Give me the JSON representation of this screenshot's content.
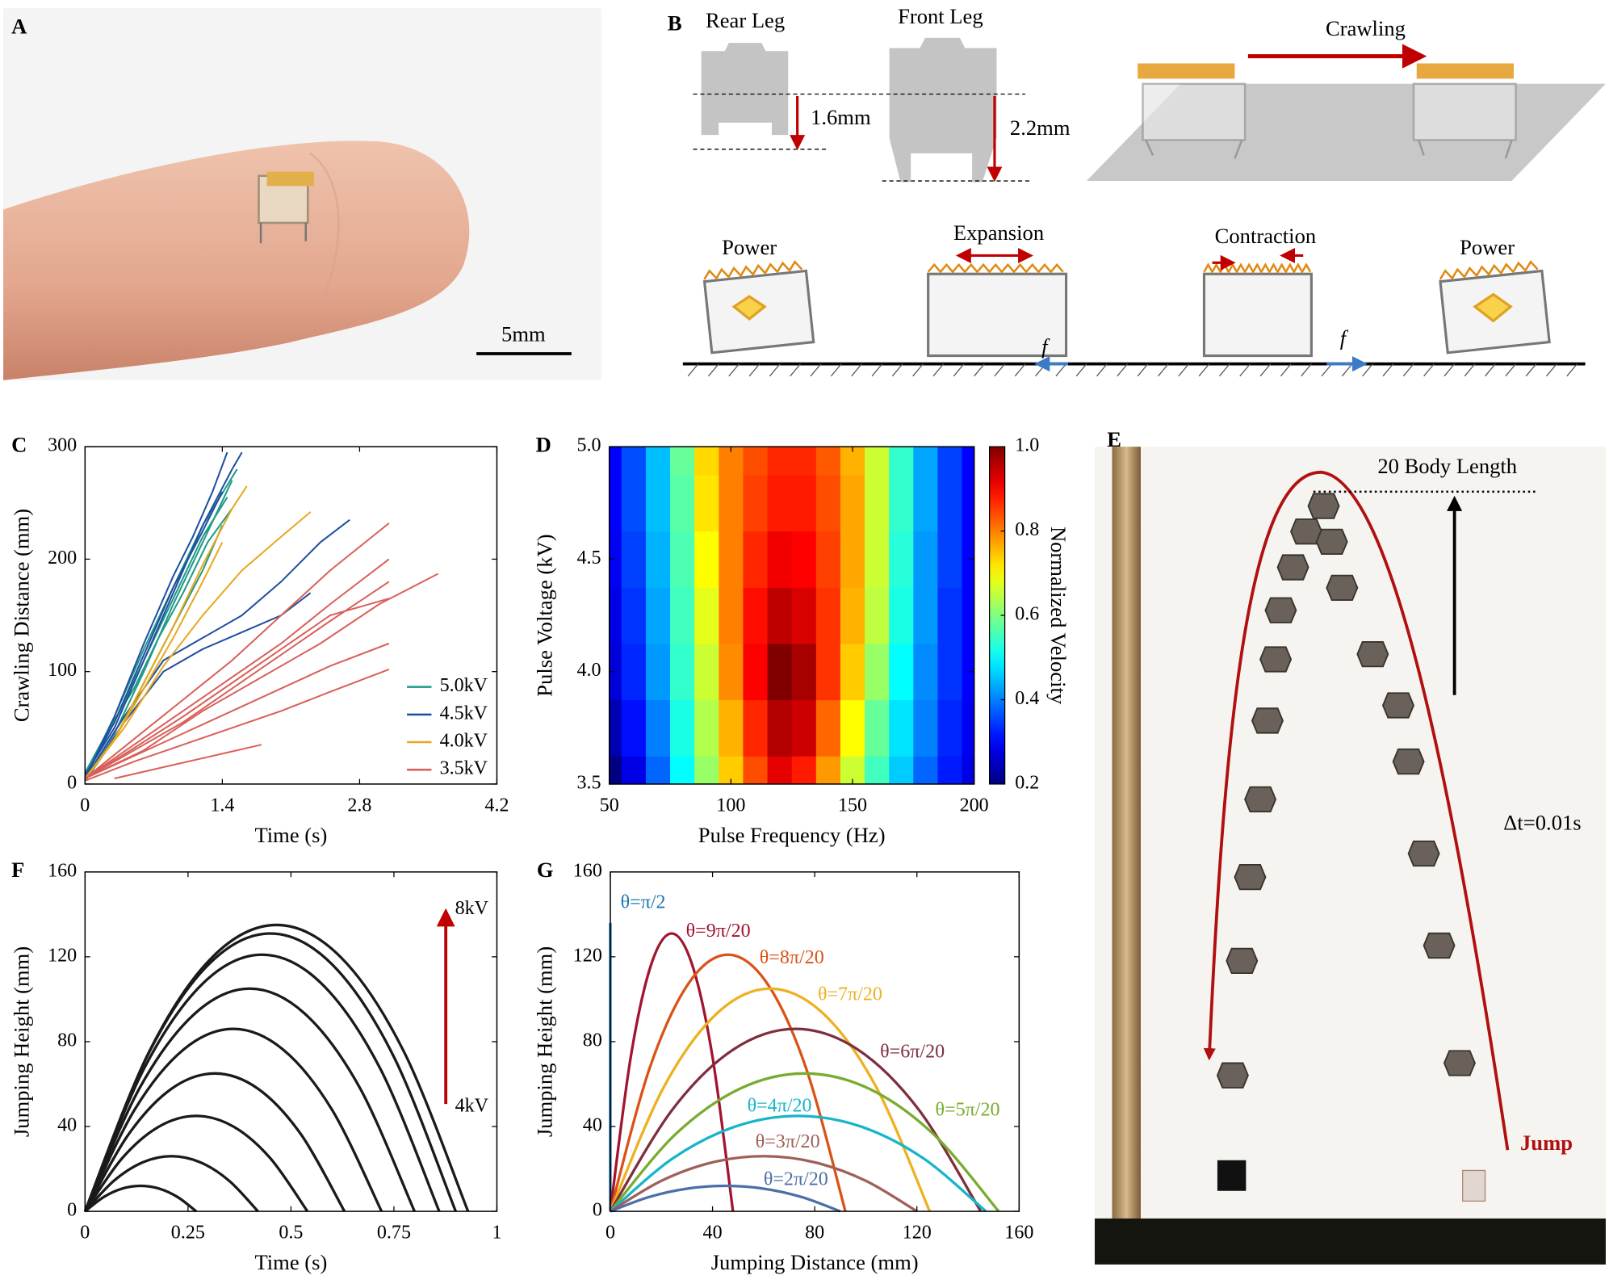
{
  "panels": {
    "A": {
      "label": "A",
      "scale_bar": "5mm"
    },
    "B": {
      "label": "B",
      "rear_leg": "Rear Leg",
      "front_leg": "Front Leg",
      "rear_height": "1.6mm",
      "front_height": "2.2mm",
      "crawling": "Crawling",
      "phases": [
        "Power",
        "Expansion",
        "Contraction",
        "Power"
      ],
      "friction": [
        "f",
        "f"
      ]
    },
    "E": {
      "label": "E",
      "height_note": "20 Body Length",
      "interval": "Δt=0.01s",
      "jump": "Jump"
    }
  },
  "chart_data": [
    {
      "type": "line",
      "panel": "C",
      "xlabel": "Time (s)",
      "ylabel": "Crawling Distance (mm)",
      "xlim": [
        0,
        4.2
      ],
      "xticks": [
        0,
        1.4,
        2.8,
        4.2
      ],
      "ylim": [
        0,
        300
      ],
      "yticks": [
        0,
        100,
        200,
        300
      ],
      "legend": "lower right",
      "series": [
        {
          "name": "5.0kV",
          "color": "#1f9a86",
          "runs": [
            {
              "x": [
                0,
                0.3,
                0.6,
                0.9,
                1.2,
                1.5
              ],
              "values": [
                5,
                45,
                100,
                160,
                215,
                270
              ]
            },
            {
              "x": [
                0,
                0.3,
                0.6,
                0.9,
                1.2,
                1.45
              ],
              "values": [
                8,
                55,
                110,
                165,
                220,
                255
              ]
            },
            {
              "x": [
                0,
                0.3,
                0.6,
                0.9,
                1.2,
                1.4
              ],
              "values": [
                3,
                40,
                90,
                140,
                190,
                230
              ]
            },
            {
              "x": [
                0,
                0.25,
                0.5,
                0.75,
                1.0,
                1.25,
                1.5
              ],
              "values": [
                10,
                50,
                85,
                130,
                170,
                215,
                245
              ]
            },
            {
              "x": [
                0,
                0.3,
                0.6,
                0.9,
                1.2,
                1.55
              ],
              "values": [
                6,
                60,
                120,
                175,
                230,
                280
              ]
            }
          ]
        },
        {
          "name": "4.5kV",
          "color": "#1f4fa0",
          "runs": [
            {
              "x": [
                0,
                0.3,
                0.6,
                0.9,
                1.1,
                1.3,
                1.45
              ],
              "values": [
                5,
                60,
                125,
                185,
                220,
                260,
                295
              ]
            },
            {
              "x": [
                0,
                0.3,
                0.6,
                0.9,
                1.2,
                1.5,
                1.6
              ],
              "values": [
                8,
                50,
                110,
                170,
                230,
                280,
                295
              ]
            },
            {
              "x": [
                0,
                0.4,
                0.8,
                1.2,
                1.6,
                2.0,
                2.4,
                2.7
              ],
              "values": [
                5,
                60,
                110,
                130,
                150,
                180,
                215,
                235
              ]
            },
            {
              "x": [
                0,
                0.4,
                0.8,
                1.2,
                1.6,
                2.0,
                2.3
              ],
              "values": [
                3,
                55,
                100,
                120,
                135,
                150,
                170
              ]
            },
            {
              "x": [
                0,
                0.3,
                0.6,
                0.9,
                1.2,
                1.4
              ],
              "values": [
                6,
                55,
                115,
                175,
                225,
                260
              ]
            }
          ]
        },
        {
          "name": "4.0kV",
          "color": "#e8a820",
          "runs": [
            {
              "x": [
                0,
                0.3,
                0.6,
                0.9,
                1.2,
                1.5,
                1.65
              ],
              "values": [
                5,
                40,
                90,
                140,
                195,
                245,
                265
              ]
            },
            {
              "x": [
                0,
                0.4,
                0.8,
                1.2,
                1.6,
                2.0,
                2.3
              ],
              "values": [
                5,
                50,
                105,
                150,
                190,
                220,
                242
              ]
            },
            {
              "x": [
                0,
                0.3,
                0.6,
                0.9,
                1.2,
                1.4
              ],
              "values": [
                4,
                40,
                85,
                130,
                180,
                215
              ]
            }
          ]
        },
        {
          "name": "3.5kV",
          "color": "#d9605a",
          "runs": [
            {
              "x": [
                0,
                0.5,
                1.0,
                1.5,
                2.0,
                2.5,
                3.1
              ],
              "values": [
                5,
                40,
                75,
                110,
                150,
                190,
                232
              ]
            },
            {
              "x": [
                0,
                0.6,
                1.2,
                1.8,
                2.4,
                3.0,
                3.6
              ],
              "values": [
                5,
                30,
                65,
                95,
                125,
                160,
                187
              ]
            },
            {
              "x": [
                0,
                0.5,
                1.0,
                1.5,
                2.0,
                2.5,
                3.1
              ],
              "values": [
                5,
                35,
                65,
                95,
                125,
                160,
                200
              ]
            },
            {
              "x": [
                0,
                0.5,
                1.0,
                1.5,
                2.0,
                2.5,
                3.1
              ],
              "values": [
                5,
                30,
                55,
                85,
                115,
                145,
                180
              ]
            },
            {
              "x": [
                0,
                0.5,
                1.0,
                1.5,
                2.0,
                2.5,
                3.1
              ],
              "values": [
                5,
                32,
                60,
                90,
                120,
                150,
                165
              ]
            },
            {
              "x": [
                0,
                0.5,
                1.0,
                1.5,
                2.0,
                2.5,
                3.1
              ],
              "values": [
                5,
                25,
                45,
                65,
                85,
                105,
                125
              ]
            },
            {
              "x": [
                0,
                0.5,
                1.0,
                1.5,
                2.0,
                2.5,
                3.1
              ],
              "values": [
                3,
                20,
                35,
                50,
                65,
                82,
                102
              ]
            },
            {
              "x": [
                0.3,
                0.8,
                1.3,
                1.8
              ],
              "values": [
                5,
                15,
                25,
                35
              ]
            }
          ]
        }
      ]
    },
    {
      "type": "heatmap",
      "panel": "D",
      "xlabel": "Pulse Frequency (Hz)",
      "ylabel": "Pulse Voltage (kV)",
      "colorbar_label": "Normalized Velocity",
      "colormap": "jet",
      "xlim": [
        50,
        200
      ],
      "xticks": [
        50,
        100,
        150,
        200
      ],
      "ylim": [
        3.5,
        5
      ],
      "yticks": [
        3.5,
        {
          "value": 4,
          "label": "4.0"
        },
        4.5,
        {
          "value": 5,
          "label": "5.0"
        }
      ],
      "zlim": [
        0.2,
        1
      ],
      "zticks": [
        0.2,
        0.4,
        0.6,
        0.8,
        {
          "value": 1,
          "label": "1.0"
        }
      ],
      "x": [
        50,
        60,
        70,
        80,
        90,
        100,
        110,
        120,
        130,
        140,
        150,
        160,
        170,
        180,
        190,
        200
      ],
      "y": [
        3.5,
        3.75,
        4,
        4.25,
        4.5,
        4.75,
        5
      ],
      "z": [
        [
          0.2,
          0.28,
          0.38,
          0.5,
          0.62,
          0.74,
          0.84,
          0.92,
          0.88,
          0.78,
          0.66,
          0.55,
          0.46,
          0.38,
          0.32,
          0.28
        ],
        [
          0.24,
          0.31,
          0.4,
          0.52,
          0.64,
          0.76,
          0.87,
          0.96,
          0.94,
          0.82,
          0.7,
          0.58,
          0.48,
          0.4,
          0.33,
          0.29
        ],
        [
          0.27,
          0.33,
          0.42,
          0.54,
          0.66,
          0.79,
          0.9,
          1.0,
          0.97,
          0.86,
          0.74,
          0.62,
          0.5,
          0.41,
          0.34,
          0.3
        ],
        [
          0.28,
          0.34,
          0.43,
          0.55,
          0.68,
          0.8,
          0.89,
          0.95,
          0.93,
          0.86,
          0.76,
          0.65,
          0.52,
          0.42,
          0.34,
          0.3
        ],
        [
          0.29,
          0.35,
          0.44,
          0.56,
          0.7,
          0.8,
          0.87,
          0.91,
          0.9,
          0.85,
          0.77,
          0.66,
          0.53,
          0.42,
          0.35,
          0.3
        ],
        [
          0.3,
          0.36,
          0.45,
          0.57,
          0.72,
          0.8,
          0.85,
          0.88,
          0.88,
          0.84,
          0.77,
          0.66,
          0.54,
          0.43,
          0.35,
          0.3
        ],
        [
          0.3,
          0.36,
          0.45,
          0.58,
          0.73,
          0.8,
          0.84,
          0.87,
          0.87,
          0.83,
          0.76,
          0.66,
          0.54,
          0.43,
          0.35,
          0.3
        ]
      ]
    },
    {
      "type": "line",
      "panel": "F",
      "xlabel": "Time (s)",
      "ylabel": "Jumping Height (mm)",
      "annotations": [
        "8kV",
        "4kV"
      ],
      "xlim": [
        0,
        1
      ],
      "xticks": [
        0,
        0.25,
        0.5,
        0.75,
        1
      ],
      "ylim": [
        0,
        160
      ],
      "yticks": [
        0,
        40,
        80,
        120,
        160
      ],
      "series": [
        {
          "color": "#1a1a1a",
          "x": [
            0,
            0.045,
            0.09,
            0.135,
            0.18,
            0.225,
            0.27
          ],
          "values": [
            0,
            6.7,
            10.7,
            12,
            10.7,
            6.7,
            0
          ]
        },
        {
          "color": "#1a1a1a",
          "x": [
            0,
            0.07,
            0.14,
            0.21,
            0.28,
            0.35,
            0.42
          ],
          "values": [
            0,
            14.4,
            23.1,
            26,
            23.1,
            14.4,
            0
          ]
        },
        {
          "color": "#1a1a1a",
          "x": [
            0,
            0.09,
            0.18,
            0.27,
            0.36,
            0.45,
            0.54
          ],
          "values": [
            0,
            25,
            40,
            45,
            40,
            25,
            0
          ]
        },
        {
          "color": "#1a1a1a",
          "x": [
            0,
            0.105,
            0.21,
            0.315,
            0.42,
            0.525,
            0.63
          ],
          "values": [
            0,
            36.1,
            57.8,
            65,
            57.8,
            36.1,
            0
          ]
        },
        {
          "color": "#1a1a1a",
          "x": [
            0,
            0.12,
            0.24,
            0.36,
            0.48,
            0.6,
            0.72
          ],
          "values": [
            0,
            47.8,
            76.4,
            86,
            76.4,
            47.8,
            0
          ]
        },
        {
          "color": "#1a1a1a",
          "x": [
            0,
            0.133,
            0.267,
            0.4,
            0.533,
            0.667,
            0.8
          ],
          "values": [
            0,
            58.3,
            93.3,
            105,
            93.3,
            58.3,
            0
          ]
        },
        {
          "color": "#1a1a1a",
          "x": [
            0,
            0.143,
            0.287,
            0.43,
            0.573,
            0.717,
            0.86
          ],
          "values": [
            0,
            67.2,
            107.6,
            121,
            107.6,
            67.2,
            0
          ]
        },
        {
          "color": "#1a1a1a",
          "x": [
            0,
            0.15,
            0.3,
            0.45,
            0.6,
            0.75,
            0.9
          ],
          "values": [
            0,
            72.8,
            116.4,
            131,
            116.4,
            72.8,
            0
          ]
        },
        {
          "color": "#1a1a1a",
          "x": [
            0,
            0.155,
            0.31,
            0.465,
            0.62,
            0.775,
            0.93
          ],
          "values": [
            0,
            75,
            120,
            135,
            120,
            75,
            0
          ]
        }
      ]
    },
    {
      "type": "line",
      "panel": "G",
      "xlabel": "Jumping Distance (mm)",
      "ylabel": "Jumping Height (mm)",
      "xlim": [
        0,
        160
      ],
      "xticks": [
        0,
        40,
        80,
        120,
        160
      ],
      "ylim": [
        0,
        160
      ],
      "yticks": [
        0,
        40,
        80,
        120,
        160
      ],
      "series": [
        {
          "name": "θ=π/2",
          "color": "#1f77b4",
          "x": [
            0,
            0
          ],
          "values": [
            0,
            136
          ]
        },
        {
          "name": "θ=9π/20",
          "color": "#a2142f",
          "x": [
            0,
            8,
            16,
            24,
            32,
            40,
            48
          ],
          "values": [
            0,
            72.8,
            116.4,
            131,
            116.4,
            72.8,
            0
          ]
        },
        {
          "name": "θ=8π/20",
          "color": "#d95319",
          "x": [
            0,
            15.3,
            30.7,
            46,
            61.3,
            76.7,
            92
          ],
          "values": [
            0,
            67.2,
            107.6,
            121,
            107.6,
            67.2,
            0
          ]
        },
        {
          "name": "θ=7π/20",
          "color": "#edb120",
          "x": [
            0,
            20.8,
            41.7,
            62.5,
            83.3,
            104.2,
            125
          ],
          "values": [
            0,
            58.3,
            93.3,
            105,
            93.3,
            58.3,
            0
          ]
        },
        {
          "name": "θ=6π/20",
          "color": "#7e2f3f",
          "x": [
            0,
            24.2,
            48.3,
            72.5,
            96.7,
            120.8,
            145
          ],
          "values": [
            0,
            47.8,
            76.4,
            86,
            76.4,
            47.8,
            0
          ]
        },
        {
          "name": "θ=5π/20",
          "color": "#77ac30",
          "x": [
            0,
            25.3,
            50.7,
            76,
            101.3,
            126.7,
            152
          ],
          "values": [
            0,
            36.1,
            57.8,
            65,
            57.8,
            36.1,
            0
          ]
        },
        {
          "name": "θ=4π/20",
          "color": "#17b5c8",
          "x": [
            0,
            24.5,
            49,
            73.5,
            98,
            122.5,
            147
          ],
          "values": [
            0,
            25,
            40,
            45,
            40,
            25,
            0
          ]
        },
        {
          "name": "θ=3π/20",
          "color": "#a0605a",
          "x": [
            0,
            20,
            40,
            60,
            80,
            100,
            120
          ],
          "values": [
            0,
            14.4,
            23.1,
            26,
            23.1,
            14.4,
            0
          ]
        },
        {
          "name": "θ=2π/20",
          "color": "#4d6fa8",
          "x": [
            0,
            15,
            30,
            45,
            60,
            75,
            90
          ],
          "values": [
            0,
            6.7,
            10.7,
            12,
            10.7,
            6.7,
            0
          ]
        }
      ]
    }
  ]
}
